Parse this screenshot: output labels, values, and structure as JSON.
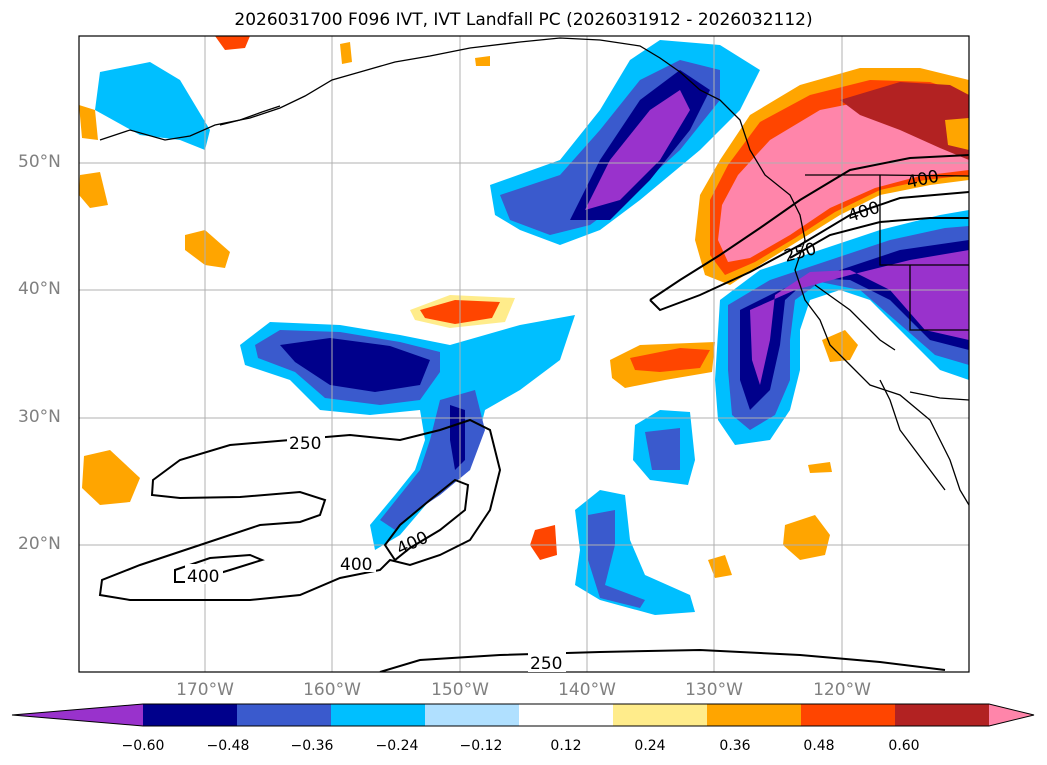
{
  "title": "2026031700 F096 IVT, IVT Landfall PC (2026031912 - 2026032112)",
  "lat_labels": [
    "50°N",
    "40°N",
    "30°N",
    "20°N"
  ],
  "lon_labels": [
    "170°W",
    "160°W",
    "150°W",
    "140°W",
    "130°W",
    "120°W"
  ],
  "contour_labels": [
    "400",
    "400",
    "250",
    "250",
    "400",
    "400",
    "400",
    "250"
  ],
  "colorbar": {
    "ticks": [
      "−0.60",
      "−0.48",
      "−0.36",
      "−0.24",
      "−0.12",
      "0.12",
      "0.24",
      "0.36",
      "0.48",
      "0.60"
    ],
    "colors": [
      "#9932cc",
      "#00008b",
      "#3a5acd",
      "#00bfff",
      "#b0e0ff",
      "#ffffff",
      "#ffec8b",
      "#ffa500",
      "#ff4500",
      "#b22222",
      "#ff85aa"
    ]
  }
}
